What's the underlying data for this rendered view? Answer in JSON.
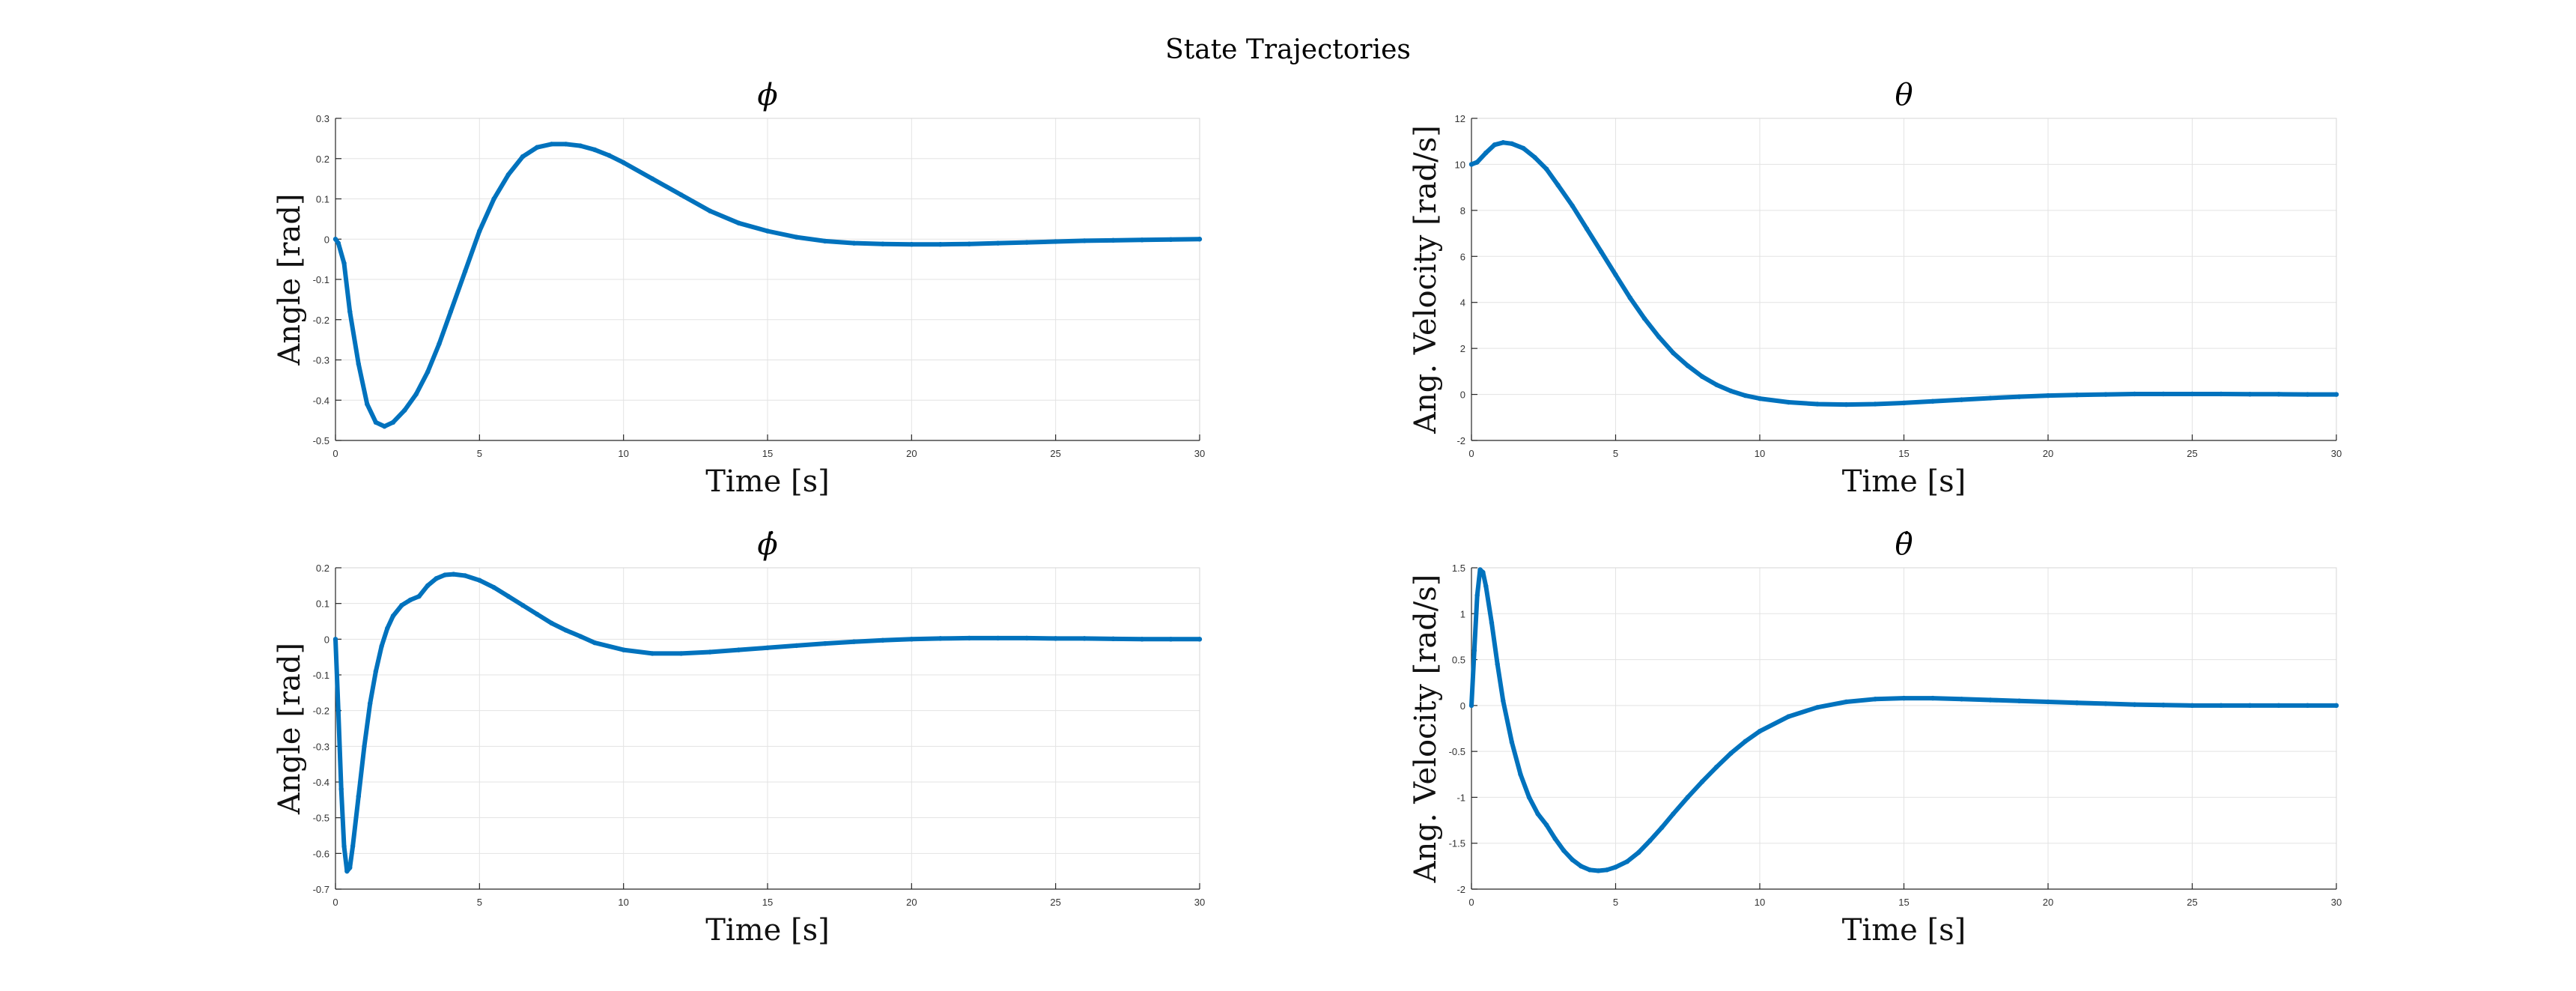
{
  "figure": {
    "title": "State Trajectories",
    "line_color": "#0072BD"
  },
  "chart_data": [
    {
      "type": "line",
      "title": "ϕ",
      "xlabel": "Time [s]",
      "ylabel": "Angle [rad]",
      "xlim": [
        0,
        30
      ],
      "ylim": [
        -0.5,
        0.3
      ],
      "xticks": [
        0,
        5,
        10,
        15,
        20,
        25,
        30
      ],
      "yticks": [
        -0.5,
        -0.4,
        -0.3,
        -0.2,
        -0.1,
        0,
        0.1,
        0.2,
        0.3
      ],
      "grid": true,
      "series": [
        {
          "x": [
            0,
            0.1,
            0.3,
            0.5,
            0.8,
            1.1,
            1.4,
            1.7,
            2.0,
            2.4,
            2.8,
            3.2,
            3.6,
            4.0,
            4.5,
            5.0,
            5.5,
            6.0,
            6.5,
            7.0,
            7.5,
            8.0,
            8.5,
            9.0,
            9.5,
            10.0,
            11,
            12,
            13,
            14,
            15,
            16,
            17,
            18,
            19,
            20,
            21,
            22,
            23,
            24,
            25,
            26,
            27,
            28,
            29,
            30
          ],
          "y": [
            0,
            -0.01,
            -0.06,
            -0.18,
            -0.31,
            -0.41,
            -0.455,
            -0.465,
            -0.455,
            -0.425,
            -0.385,
            -0.33,
            -0.26,
            -0.18,
            -0.08,
            0.02,
            0.1,
            0.16,
            0.205,
            0.228,
            0.236,
            0.236,
            0.232,
            0.222,
            0.208,
            0.19,
            0.15,
            0.11,
            0.07,
            0.04,
            0.02,
            0.005,
            -0.005,
            -0.01,
            -0.012,
            -0.013,
            -0.013,
            -0.012,
            -0.01,
            -0.008,
            -0.006,
            -0.004,
            -0.003,
            -0.002,
            -0.001,
            0
          ]
        }
      ]
    },
    {
      "type": "line",
      "title": "θ",
      "xlabel": "Time [s]",
      "ylabel": "Ang. Velocity [rad/s]",
      "xlim": [
        0,
        30
      ],
      "ylim": [
        -2,
        12
      ],
      "xticks": [
        0,
        5,
        10,
        15,
        20,
        25,
        30
      ],
      "yticks": [
        -2,
        0,
        2,
        4,
        6,
        8,
        10,
        12
      ],
      "grid": true,
      "series": [
        {
          "x": [
            0,
            0.2,
            0.5,
            0.8,
            1.1,
            1.4,
            1.8,
            2.2,
            2.6,
            3.0,
            3.5,
            4.0,
            4.5,
            5.0,
            5.5,
            6.0,
            6.5,
            7.0,
            7.5,
            8.0,
            8.5,
            9.0,
            9.5,
            10,
            11,
            12,
            13,
            14,
            15,
            16,
            17,
            18,
            19,
            20,
            21,
            22,
            23,
            24,
            25,
            26,
            27,
            28,
            29,
            30
          ],
          "y": [
            10.0,
            10.1,
            10.5,
            10.85,
            10.95,
            10.9,
            10.7,
            10.3,
            9.8,
            9.1,
            8.2,
            7.2,
            6.2,
            5.2,
            4.2,
            3.3,
            2.5,
            1.8,
            1.25,
            0.78,
            0.42,
            0.15,
            -0.05,
            -0.18,
            -0.34,
            -0.42,
            -0.44,
            -0.42,
            -0.37,
            -0.3,
            -0.23,
            -0.16,
            -0.1,
            -0.05,
            -0.02,
            0.0,
            0.02,
            0.02,
            0.02,
            0.02,
            0.01,
            0.01,
            0.0,
            0.0
          ]
        }
      ]
    },
    {
      "type": "line",
      "title": "ϕ̇",
      "xlabel": "Time [s]",
      "ylabel": "Angle [rad]",
      "xlim": [
        0,
        30
      ],
      "ylim": [
        -0.7,
        0.2
      ],
      "xticks": [
        0,
        5,
        10,
        15,
        20,
        25,
        30
      ],
      "yticks": [
        -0.7,
        -0.6,
        -0.5,
        -0.4,
        -0.3,
        -0.2,
        -0.1,
        0,
        0.1,
        0.2
      ],
      "grid": true,
      "series": [
        {
          "x": [
            0,
            0.1,
            0.2,
            0.3,
            0.4,
            0.5,
            0.6,
            0.8,
            1.0,
            1.2,
            1.4,
            1.6,
            1.8,
            2.0,
            2.3,
            2.6,
            2.9,
            3.2,
            3.5,
            3.8,
            4.1,
            4.5,
            5.0,
            5.5,
            6.0,
            6.5,
            7.0,
            7.5,
            8.0,
            8.5,
            9,
            10,
            11,
            12,
            13,
            14,
            15,
            16,
            17,
            18,
            19,
            20,
            21,
            22,
            23,
            24,
            25,
            26,
            27,
            28,
            29,
            30
          ],
          "y": [
            0,
            -0.2,
            -0.42,
            -0.58,
            -0.65,
            -0.64,
            -0.58,
            -0.44,
            -0.3,
            -0.18,
            -0.09,
            -0.02,
            0.03,
            0.065,
            0.095,
            0.11,
            0.12,
            0.15,
            0.17,
            0.18,
            0.182,
            0.178,
            0.165,
            0.145,
            0.12,
            0.095,
            0.07,
            0.045,
            0.025,
            0.008,
            -0.01,
            -0.03,
            -0.04,
            -0.04,
            -0.036,
            -0.03,
            -0.024,
            -0.018,
            -0.012,
            -0.007,
            -0.003,
            0.0,
            0.002,
            0.003,
            0.003,
            0.003,
            0.002,
            0.002,
            0.001,
            0.0,
            0.0,
            0.0
          ]
        }
      ]
    },
    {
      "type": "line",
      "title": "θ̇",
      "xlabel": "Time [s]",
      "ylabel": "Ang. Velocity [rad/s]",
      "xlim": [
        0,
        30
      ],
      "ylim": [
        -2,
        1.5
      ],
      "xticks": [
        0,
        5,
        10,
        15,
        20,
        25,
        30
      ],
      "yticks": [
        -2,
        -1.5,
        -1,
        -0.5,
        0,
        0.5,
        1,
        1.5
      ],
      "grid": true,
      "series": [
        {
          "x": [
            0,
            0.1,
            0.2,
            0.3,
            0.4,
            0.5,
            0.7,
            0.9,
            1.1,
            1.4,
            1.7,
            2.0,
            2.3,
            2.6,
            2.9,
            3.2,
            3.5,
            3.8,
            4.1,
            4.4,
            4.7,
            5.0,
            5.4,
            5.8,
            6.2,
            6.6,
            7.0,
            7.5,
            8.0,
            8.5,
            9.0,
            9.5,
            10,
            11,
            12,
            13,
            14,
            15,
            16,
            17,
            18,
            19,
            20,
            21,
            22,
            23,
            24,
            25,
            26,
            27,
            28,
            29,
            30
          ],
          "y": [
            0,
            0.6,
            1.2,
            1.48,
            1.45,
            1.3,
            0.9,
            0.45,
            0.05,
            -0.4,
            -0.75,
            -1.0,
            -1.18,
            -1.3,
            -1.45,
            -1.58,
            -1.68,
            -1.75,
            -1.79,
            -1.8,
            -1.79,
            -1.76,
            -1.7,
            -1.6,
            -1.47,
            -1.33,
            -1.18,
            -1.0,
            -0.83,
            -0.67,
            -0.52,
            -0.39,
            -0.28,
            -0.12,
            -0.02,
            0.04,
            0.07,
            0.08,
            0.08,
            0.07,
            0.06,
            0.05,
            0.04,
            0.03,
            0.02,
            0.01,
            0.005,
            0.0,
            0.0,
            0.0,
            0.0,
            0.0,
            0.0
          ]
        }
      ]
    }
  ]
}
